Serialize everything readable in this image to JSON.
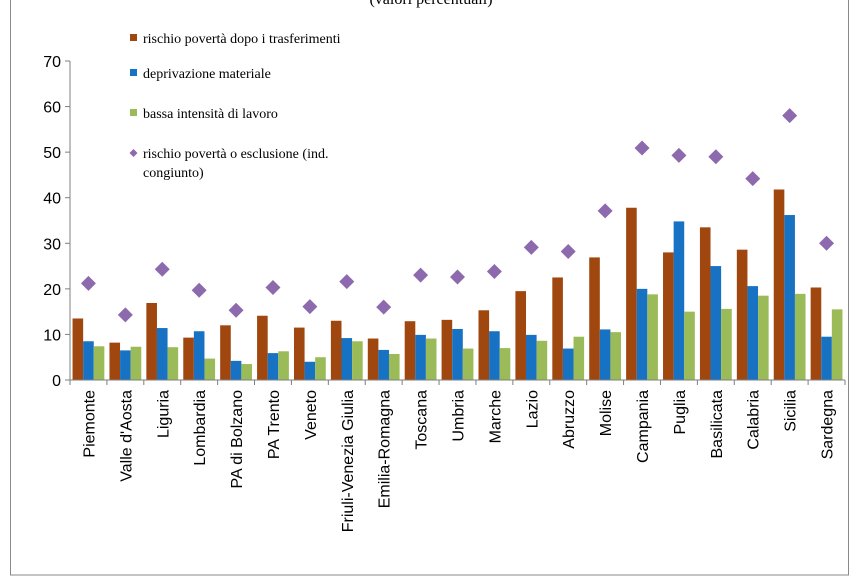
{
  "chart_data": {
    "type": "bar",
    "title": "(valori percentuali)",
    "ylim": [
      0,
      70
    ],
    "yticks": [
      0,
      10,
      20,
      30,
      40,
      50,
      60,
      70
    ],
    "grid": false,
    "legend_position": "top-left",
    "colors": {
      "rischio": "#A0460F",
      "deprivazione": "#1872C4",
      "bassa": "#9BBB59",
      "indicatore": "#8D6AAE"
    },
    "categories": [
      "Piemonte",
      "Valle d'Aosta",
      "Liguria",
      "Lombardia",
      "PA di Bolzano",
      "PA Trento",
      "Veneto",
      "Friuli-Venezia Giulia",
      "Emilia-Romagna",
      "Toscana",
      "Umbria",
      "Marche",
      "Lazio",
      "Abruzzo",
      "Molise",
      "Campania",
      "Puglia",
      "Basilicata",
      "Calabria",
      "Sicilia",
      "Sardegna"
    ],
    "series": [
      {
        "name": "rischio povertà dopo i trasferimenti",
        "kind": "bar",
        "color": "#A0460F",
        "values": [
          13.5,
          8.2,
          16.9,
          9.3,
          12.0,
          14.1,
          11.5,
          13.0,
          9.1,
          12.9,
          13.2,
          15.3,
          19.5,
          22.5,
          26.9,
          37.8,
          28.0,
          33.5,
          28.6,
          41.8,
          20.3
        ]
      },
      {
        "name": "deprivazione materiale",
        "kind": "bar",
        "color": "#1872C4",
        "values": [
          8.5,
          6.5,
          11.4,
          10.7,
          4.2,
          5.9,
          4.0,
          9.2,
          6.6,
          9.9,
          11.2,
          10.7,
          9.9,
          6.9,
          11.1,
          20.0,
          34.8,
          25.0,
          20.6,
          36.2,
          9.5
        ]
      },
      {
        "name": "bassa intensità di lavoro",
        "kind": "bar",
        "color": "#9BBB59",
        "values": [
          7.4,
          7.3,
          7.2,
          4.7,
          3.5,
          6.3,
          5.0,
          8.5,
          5.7,
          9.1,
          6.9,
          7.0,
          8.6,
          9.5,
          10.5,
          18.8,
          15.0,
          15.6,
          18.5,
          18.9,
          15.5
        ]
      },
      {
        "name": "rischio povertà o esclusione (ind. congiunto)",
        "name_lines": [
          "rischio povertà o esclusione (ind.",
          "congiunto)"
        ],
        "kind": "marker",
        "color": "#8D6AAE",
        "values": [
          21.2,
          14.3,
          24.3,
          19.7,
          15.3,
          20.3,
          16.1,
          21.6,
          16.0,
          23.0,
          22.6,
          23.8,
          29.1,
          28.2,
          37.1,
          50.9,
          49.3,
          49.0,
          44.2,
          58.0,
          30.0
        ]
      }
    ]
  }
}
